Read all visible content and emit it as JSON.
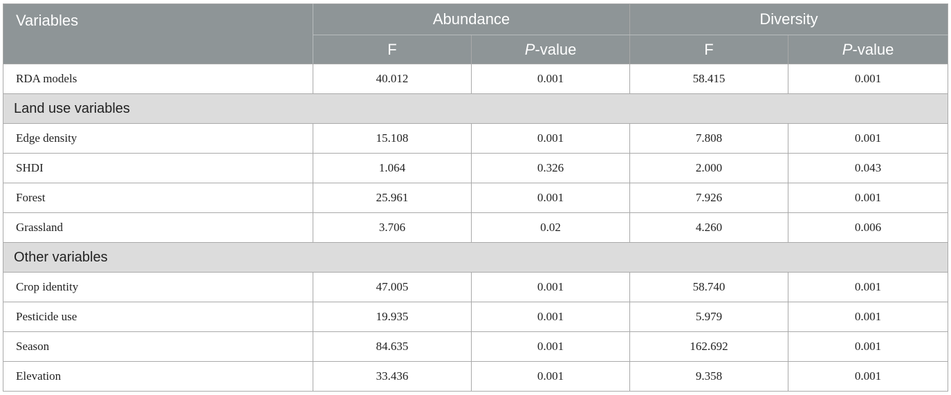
{
  "header": {
    "variables": "Variables",
    "groups": [
      "Abundance",
      "Diversity"
    ],
    "f_label": "F",
    "p_label_italic": "P",
    "p_label_rest": "-value"
  },
  "rows": [
    {
      "type": "data",
      "name": "RDA models",
      "ab_f": "40.012",
      "ab_p": "0.001",
      "dv_f": "58.415",
      "dv_p": "0.001"
    },
    {
      "type": "section",
      "name": "Land use variables"
    },
    {
      "type": "data",
      "name": "Edge density",
      "ab_f": "15.108",
      "ab_p": "0.001",
      "dv_f": "7.808",
      "dv_p": "0.001"
    },
    {
      "type": "data",
      "name": "SHDI",
      "ab_f": "1.064",
      "ab_p": "0.326",
      "dv_f": "2.000",
      "dv_p": "0.043"
    },
    {
      "type": "data",
      "name": "Forest",
      "ab_f": "25.961",
      "ab_p": "0.001",
      "dv_f": "7.926",
      "dv_p": "0.001"
    },
    {
      "type": "data",
      "name": "Grassland",
      "ab_f": "3.706",
      "ab_p": "0.02",
      "dv_f": "4.260",
      "dv_p": "0.006"
    },
    {
      "type": "section",
      "name": "Other variables"
    },
    {
      "type": "data",
      "name": "Crop identity",
      "ab_f": "47.005",
      "ab_p": "0.001",
      "dv_f": "58.740",
      "dv_p": "0.001"
    },
    {
      "type": "data",
      "name": "Pesticide use",
      "ab_f": "19.935",
      "ab_p": "0.001",
      "dv_f": "5.979",
      "dv_p": "0.001"
    },
    {
      "type": "data",
      "name": "Season",
      "ab_f": "84.635",
      "ab_p": "0.001",
      "dv_f": "162.692",
      "dv_p": "0.001"
    },
    {
      "type": "data",
      "name": "Elevation",
      "ab_f": "33.436",
      "ab_p": "0.001",
      "dv_f": "9.358",
      "dv_p": "0.001"
    }
  ]
}
